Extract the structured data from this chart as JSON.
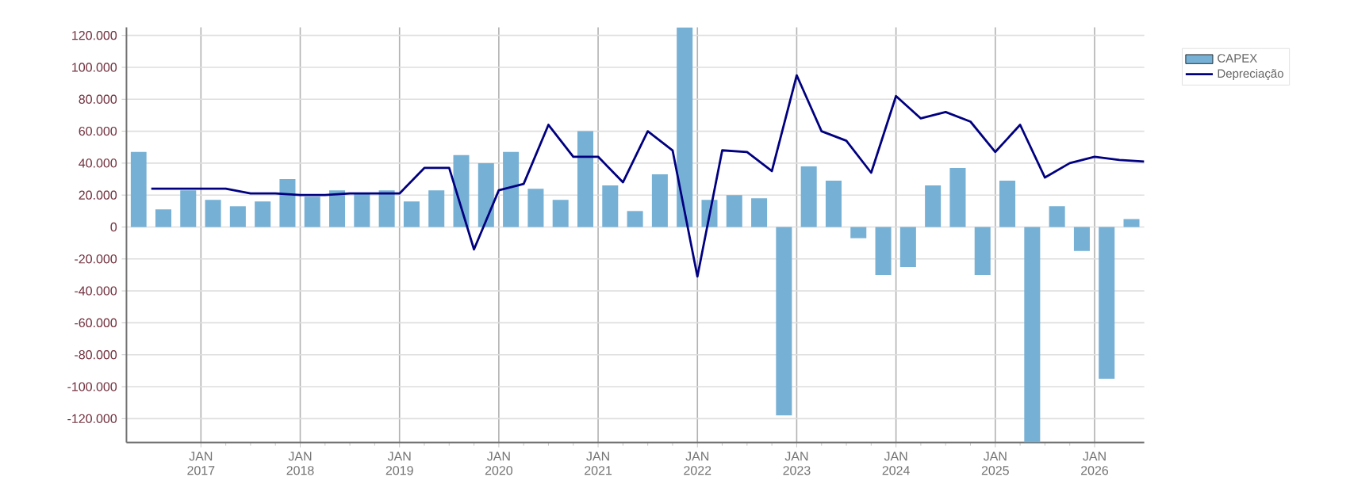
{
  "chart_data": {
    "type": "bar",
    "xlim": [
      "2016-04-01",
      "2026-07-01"
    ],
    "xticks": [
      {
        "value": "2017-01-01",
        "label": "JAN 2017"
      },
      {
        "value": "2018-01-01",
        "label": "JAN 2018"
      },
      {
        "value": "2019-01-01",
        "label": "JAN 2019"
      },
      {
        "value": "2020-01-01",
        "label": "JAN 2020"
      },
      {
        "value": "2021-01-01",
        "label": "JAN 2021"
      },
      {
        "value": "2022-01-01",
        "label": "JAN 2022"
      },
      {
        "value": "2023-01-01",
        "label": "JAN 2023"
      },
      {
        "value": "2024-01-01",
        "label": "JAN 2024"
      },
      {
        "value": "2025-01-01",
        "label": "JAN 2025"
      },
      {
        "value": "2026-01-01",
        "label": "JAN 2026"
      }
    ],
    "ylim": [
      -135000,
      125000
    ],
    "yticks": [
      {
        "value": -120000,
        "label": "-120.000"
      },
      {
        "value": -100000,
        "label": "-100.000"
      },
      {
        "value": -80000,
        "label": "-80.000"
      },
      {
        "value": -60000,
        "label": "-60.000"
      },
      {
        "value": -40000,
        "label": "-40.000"
      },
      {
        "value": -20000,
        "label": "-20.000"
      },
      0,
      {
        "value": 20000,
        "label": "20.000"
      },
      {
        "value": 40000,
        "label": "40.000"
      },
      {
        "value": 60000,
        "label": "60.000"
      },
      {
        "value": 80000,
        "label": "80.000"
      },
      {
        "value": 100000,
        "label": "100.000"
      },
      {
        "value": 120000,
        "label": "120.000"
      }
    ],
    "grid": true,
    "legend": "top right",
    "series": [
      {
        "name": "CAPEX",
        "color": "#76b0d4",
        "x": [
          "2016-05-15",
          "2016-08-15",
          "2016-11-15",
          "2017-02-15",
          "2017-05-15",
          "2017-08-15",
          "2017-11-15",
          "2018-02-15",
          "2018-05-15",
          "2018-08-15",
          "2018-11-15",
          "2019-02-15",
          "2019-05-15",
          "2019-08-15",
          "2019-11-15",
          "2020-02-15",
          "2020-05-15",
          "2020-08-15",
          "2020-11-15",
          "2021-02-15",
          "2021-05-15",
          "2021-08-15",
          "2021-11-15",
          "2022-02-15",
          "2022-05-15",
          "2022-08-15",
          "2022-11-15",
          "2023-02-15",
          "2023-05-15",
          "2023-08-15",
          "2023-11-15",
          "2024-02-15",
          "2024-05-15",
          "2024-08-15",
          "2024-11-15",
          "2025-02-15",
          "2025-05-15",
          "2025-08-15",
          "2025-11-15",
          "2026-02-15",
          "2026-05-15"
        ],
        "values": [
          47000,
          11000,
          23000,
          17000,
          13000,
          16000,
          30000,
          19000,
          23000,
          21000,
          23000,
          16000,
          23000,
          45000,
          40000,
          47000,
          24000,
          17000,
          60000,
          26000,
          10000,
          33000,
          125000,
          17000,
          20000,
          18000,
          -118000,
          38000,
          29000,
          -7000,
          -30000,
          -25000,
          26000,
          37000,
          -30000,
          29000,
          -135000,
          13000,
          -15000,
          -95000,
          5000
        ]
      },
      {
        "name": "Depreciação",
        "type": "line",
        "color": "#000080",
        "line_style": "solid",
        "x": [
          "2016-07-01",
          "2016-10-01",
          "2017-01-01",
          "2017-04-01",
          "2017-07-01",
          "2017-10-01",
          "2018-01-01",
          "2018-04-01",
          "2018-07-01",
          "2018-10-01",
          "2019-01-01",
          "2019-04-01",
          "2019-07-01",
          "2019-10-01",
          "2020-01-01",
          "2020-04-01",
          "2020-07-01",
          "2020-10-01",
          "2021-01-01",
          "2021-04-01",
          "2021-07-01",
          "2021-10-01",
          "2022-01-01",
          "2022-04-01",
          "2022-07-01",
          "2022-10-01",
          "2023-01-01",
          "2023-04-01",
          "2023-07-01",
          "2023-10-01",
          "2024-01-01",
          "2024-04-01",
          "2024-07-01",
          "2024-10-01",
          "2025-01-01",
          "2025-04-01",
          "2025-07-01",
          "2025-10-01",
          "2026-01-01",
          "2026-04-01",
          "2026-07-01"
        ],
        "values": [
          24000,
          24000,
          24000,
          24000,
          21000,
          21000,
          20000,
          20000,
          21000,
          21000,
          21000,
          37000,
          37000,
          -14000,
          23000,
          27000,
          64000,
          44000,
          44000,
          28000,
          60000,
          48000,
          -31000,
          48000,
          47000,
          35000,
          95000,
          60000,
          54000,
          34000,
          82000,
          68000,
          72000,
          66000,
          47000,
          64000,
          31000,
          40000,
          44000,
          42000,
          41000
        ]
      }
    ]
  }
}
